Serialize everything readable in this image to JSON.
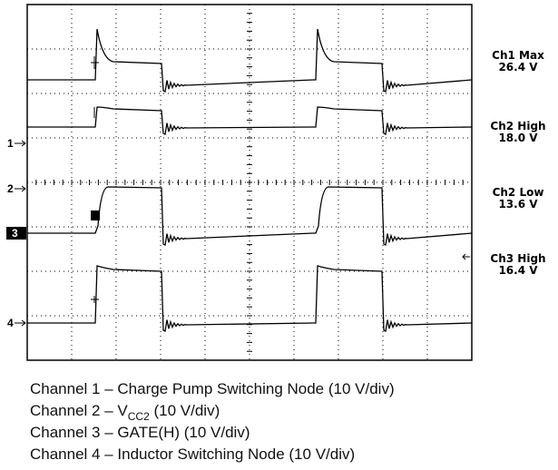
{
  "measurements": [
    {
      "label": "Ch1 Max",
      "value": "26.4 V"
    },
    {
      "label": "Ch2 High",
      "value": "18.0 V"
    },
    {
      "label": "Ch2 Low",
      "value": "13.6 V"
    },
    {
      "label": "Ch3 High",
      "value": "16.4 V"
    }
  ],
  "channel_markers": [
    "1",
    "2",
    "3",
    "4"
  ],
  "captions": [
    {
      "text": "Channel 1 – Charge Pump Switching Node (10 V/div)"
    },
    {
      "prefix": "Channel 2 – V",
      "subscript": "CC2",
      "suffix": " (10 V/div)"
    },
    {
      "text": "Channel 3 – GATE(H) (10 V/div)"
    },
    {
      "text": "Channel 4 – Inductor Switching Node (10 V/div)"
    }
  ]
}
